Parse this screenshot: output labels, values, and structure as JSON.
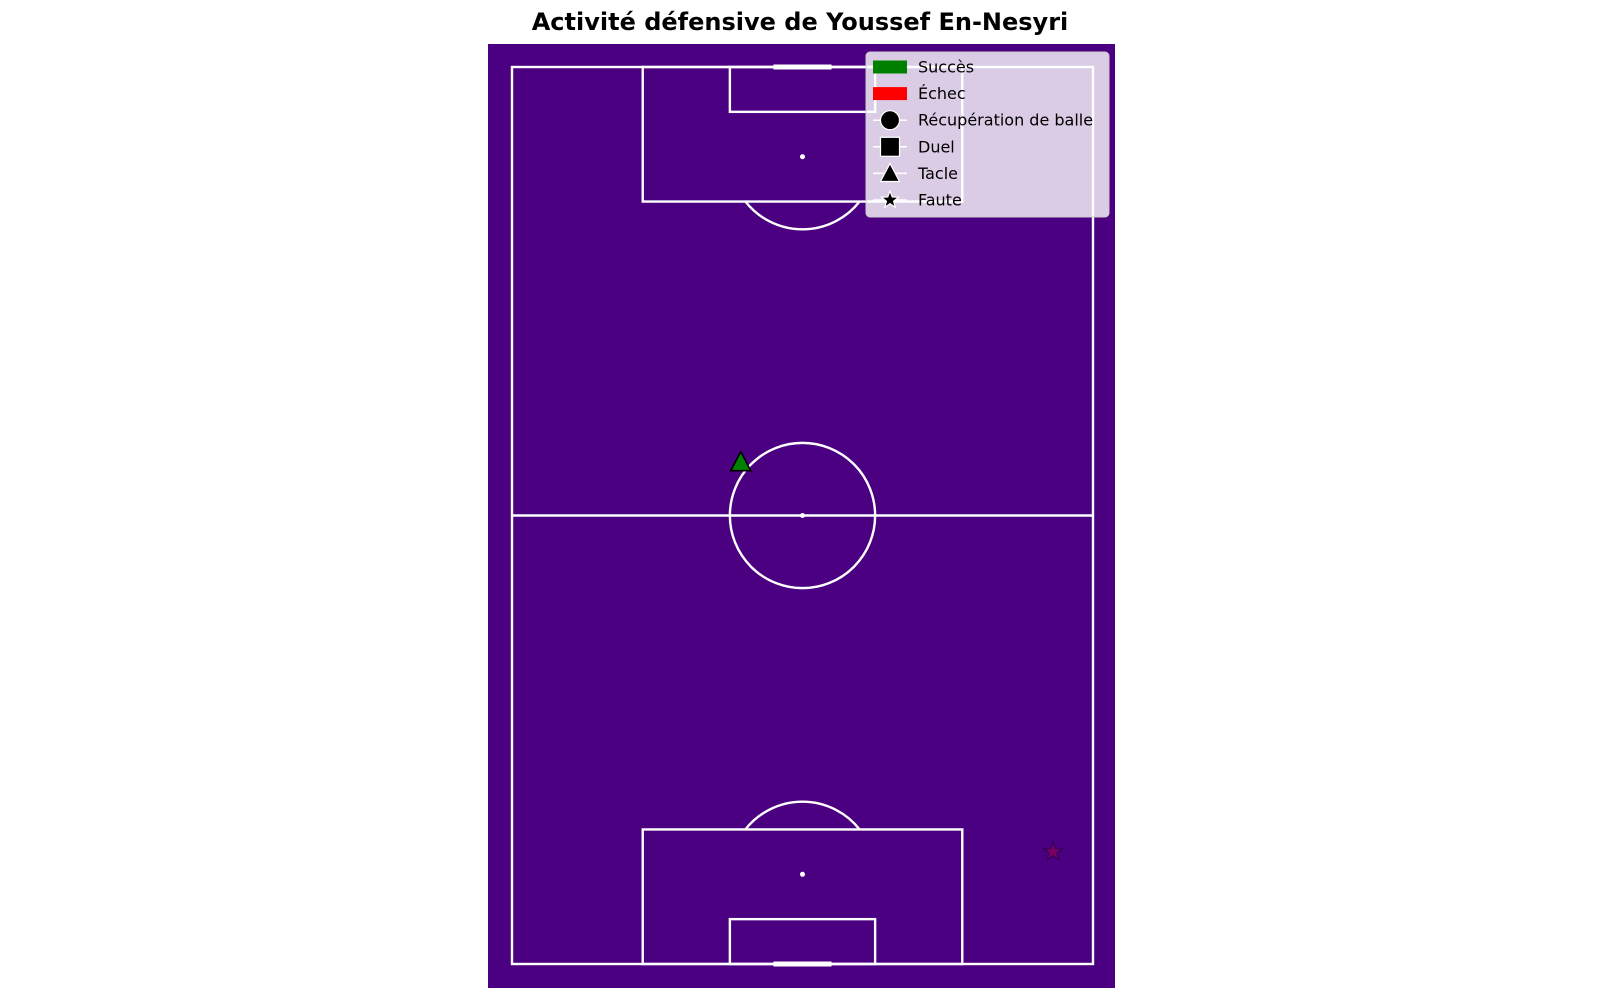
{
  "chart_data": {
    "type": "scatter",
    "title": "Activité défensive de Youssef En-Nesyri",
    "pitch": {
      "length": 120,
      "width": 80,
      "orientation": "vertical",
      "background_color": "#4b0082",
      "line_color": "#ffffff"
    },
    "legend": {
      "placement": "top-right",
      "entries": [
        {
          "label": "Succès",
          "kind": "color",
          "color": "#008000"
        },
        {
          "label": "Échec",
          "kind": "color",
          "color": "#ff0000"
        },
        {
          "label": "Récupération de balle",
          "kind": "marker",
          "marker": "circle"
        },
        {
          "label": "Duel",
          "kind": "marker",
          "marker": "square"
        },
        {
          "label": "Tacle",
          "kind": "marker",
          "marker": "triangle"
        },
        {
          "label": "Faute",
          "kind": "marker",
          "marker": "star"
        }
      ]
    },
    "events": [
      {
        "type": "Tacle",
        "marker": "triangle",
        "outcome": "Succès",
        "color": "#008000",
        "x": 53,
        "y": 31.5
      },
      {
        "type": "Faute",
        "marker": "star",
        "outcome": "Échec",
        "color": "#ff0000",
        "x": 105,
        "y": 74.5
      }
    ]
  }
}
